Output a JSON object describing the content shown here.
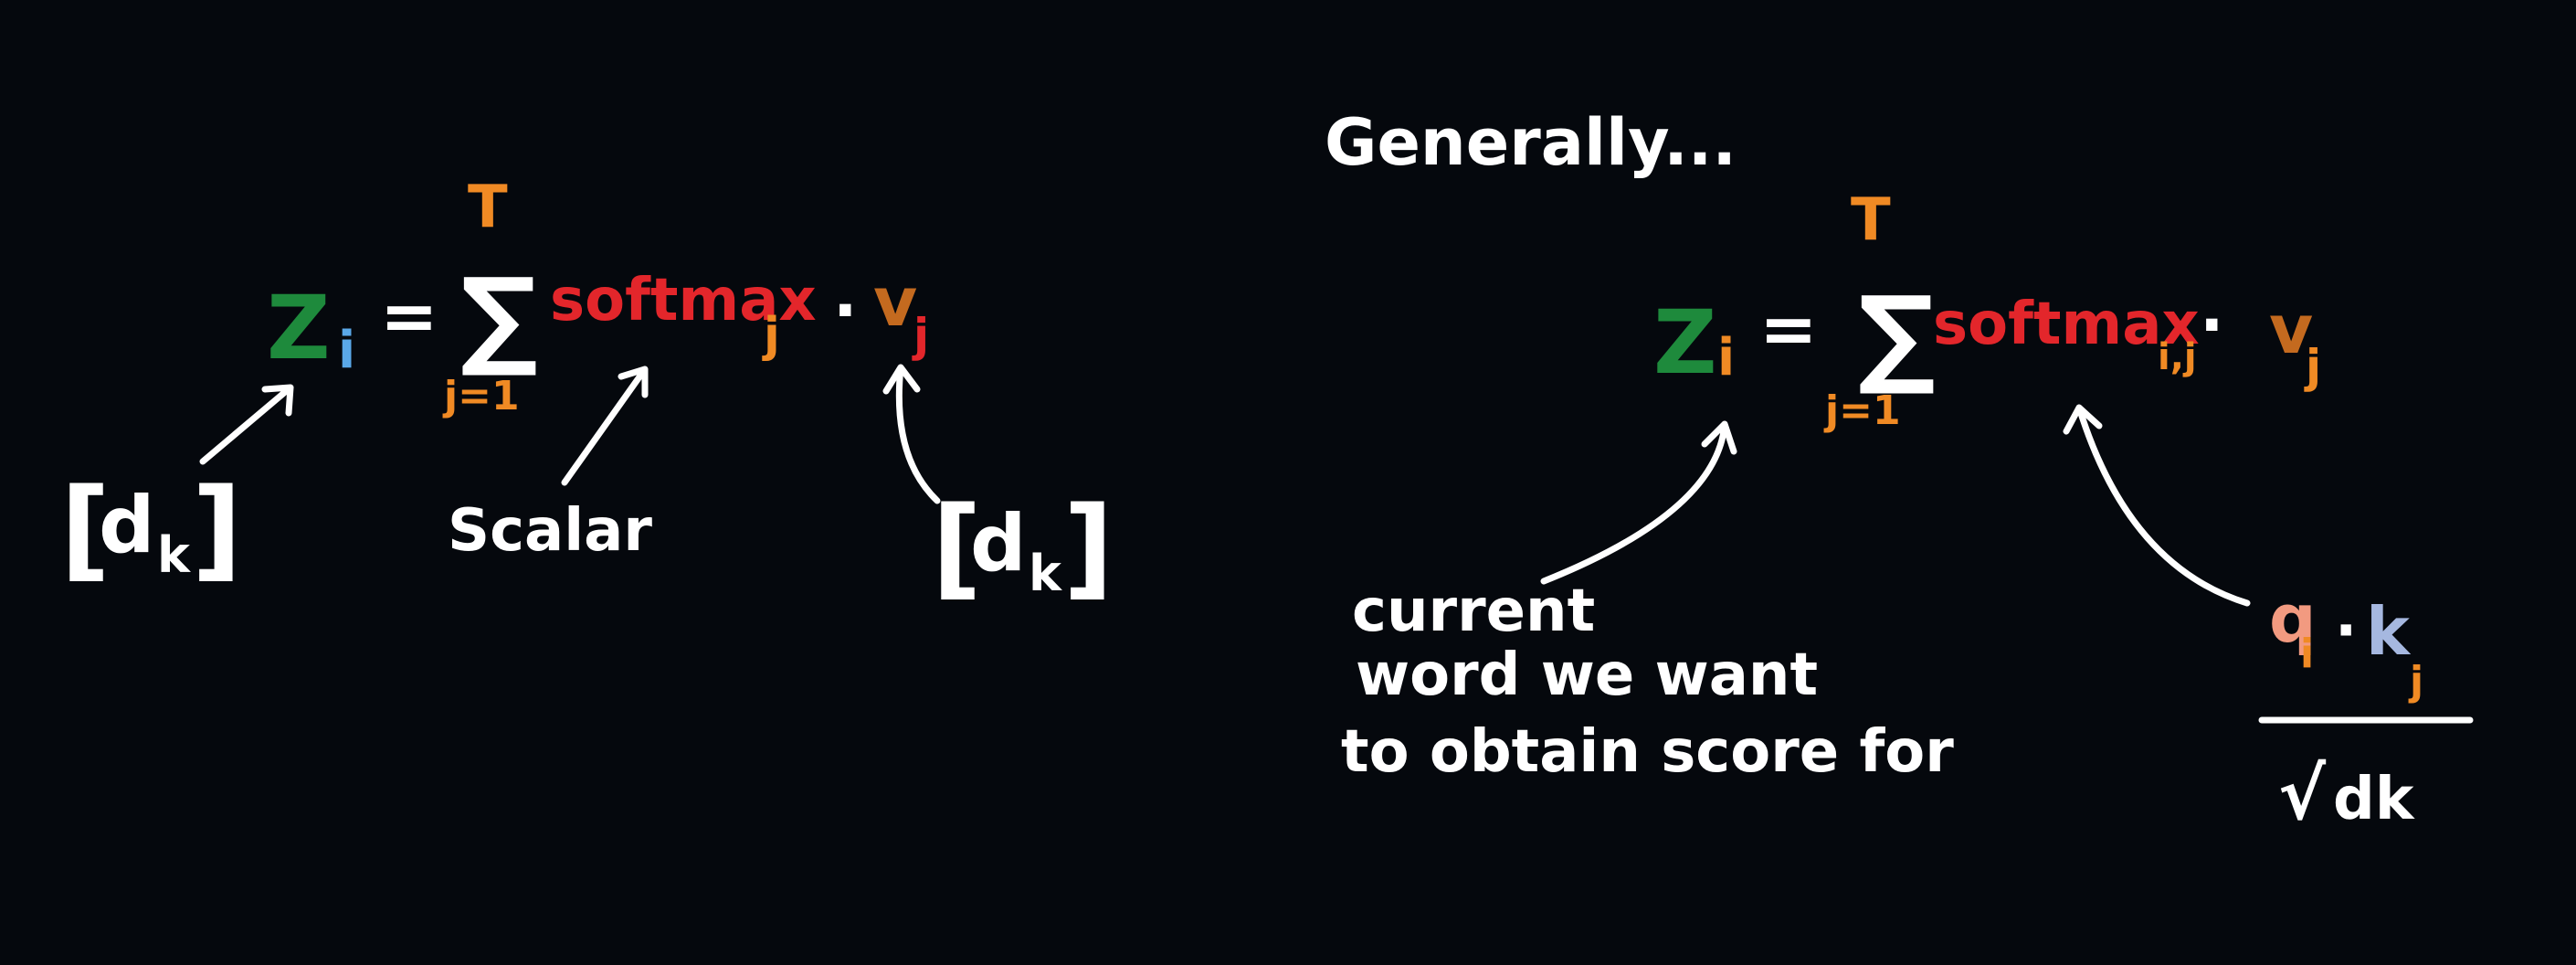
{
  "colors": {
    "background": "#05080d",
    "white": "#ffffff",
    "green": "#1e8a3c",
    "red": "#e3262b",
    "orange": "#f08a24",
    "brown": "#c46a1f",
    "light_blue": "#5aa8e8",
    "pale_blue": "#a6b8e0",
    "salmon": "#f29a80"
  },
  "left_eq": {
    "z": "Z",
    "z_sub": "i",
    "equals": "=",
    "sum_upper": "T",
    "sum_symbol": "∑",
    "sum_lower": "j=1",
    "softmax": "softmax",
    "softmax_sub": "j",
    "dot": "·",
    "v": "v",
    "v_sub": "j"
  },
  "left_notes": {
    "dk1_open": "[",
    "dk1_d": "d",
    "dk1_k": "k",
    "dk1_close": "]",
    "scalar": "Scalar",
    "dk2_open": "[",
    "dk2_d": "d",
    "dk2_k": "k",
    "dk2_close": "]"
  },
  "right": {
    "heading": "Generally...",
    "z": "Z",
    "z_sub": "i",
    "equals": "=",
    "sum_upper": "T",
    "sum_symbol": "∑",
    "sum_lower": "j=1",
    "softmax": "softmax",
    "softmax_sub": "i,j",
    "dot": "·",
    "v": "v",
    "v_sub": "j"
  },
  "right_notes": {
    "current_line1": "current",
    "current_line2": "word we want",
    "current_line3": "to obtain score for",
    "q": "q",
    "q_sub": "i",
    "dot": "·",
    "k": "k",
    "k_sub": "j",
    "sqrt": "√",
    "dk": "dk"
  }
}
